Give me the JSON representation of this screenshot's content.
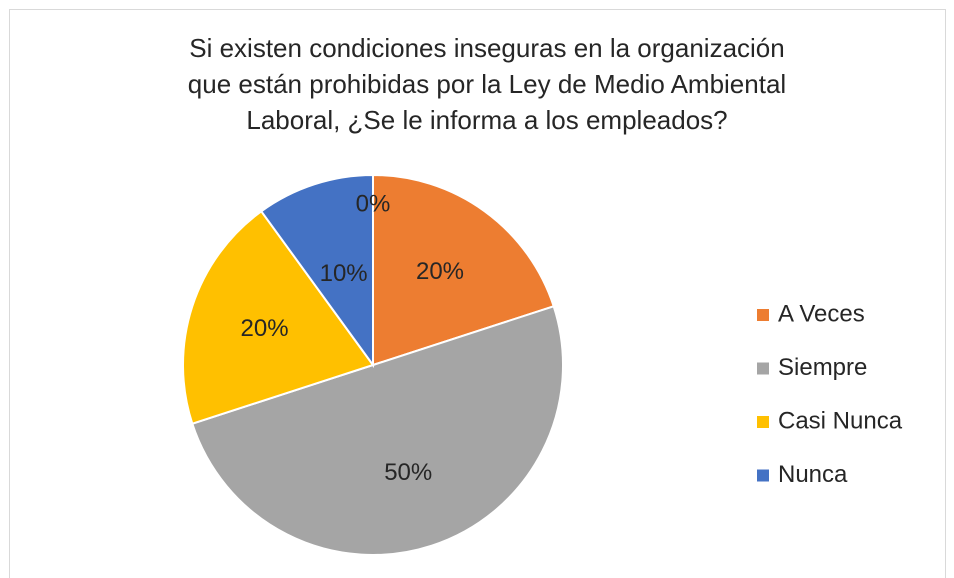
{
  "chart_data": {
    "type": "pie",
    "title": [
      "Si existen condiciones inseguras en la organización",
      "que están prohibidas por la Ley de Medio Ambiental",
      "Laboral, ¿Se le informa a los empleados?"
    ],
    "categories": [
      "A Veces",
      "Siempre",
      "Casi Nunca",
      "Nunca",
      null
    ],
    "values": [
      20,
      50,
      20,
      10,
      0
    ],
    "value_labels": [
      "20%",
      "50%",
      "20%",
      "10%",
      "0%"
    ],
    "colors": [
      "#ed7d31",
      "#a5a5a5",
      "#ffc000",
      "#4472c4",
      "#70ad47"
    ],
    "legend": "right"
  }
}
